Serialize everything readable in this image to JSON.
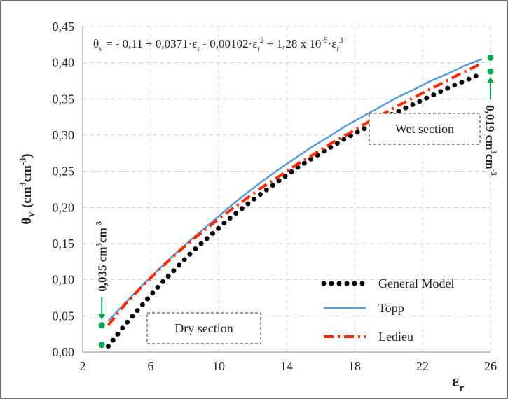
{
  "chart_data": {
    "type": "line",
    "equation": [
      "θ",
      "v",
      " = - 0,11 + 0,0371·ε",
      "r",
      " - 0,00102·ε",
      "r",
      "2",
      " + 1,28 x 10",
      "-5",
      "·ε",
      "r",
      "3"
    ],
    "y_label": [
      "θ",
      "V",
      " (cm",
      "3",
      "cm",
      "-3",
      ")"
    ],
    "x_label": [
      "ε",
      "r"
    ],
    "x": [
      3.5,
      4.5,
      5.5,
      6.5,
      7.5,
      8.5,
      9.5,
      10.5,
      11.5,
      12.5,
      13.5,
      14.5,
      15.5,
      16.5,
      17.5,
      18.5,
      19.5,
      20.5,
      21.5,
      22.5,
      23.5,
      24.5,
      25.5
    ],
    "series": [
      {
        "name": "General Model",
        "color": "#000000",
        "values": [
          0.008,
          0.038,
          0.065,
          0.092,
          0.116,
          0.14,
          0.161,
          0.182,
          0.201,
          0.219,
          0.236,
          0.253,
          0.268,
          0.282,
          0.296,
          0.308,
          0.321,
          0.332,
          0.343,
          0.354,
          0.365,
          0.375,
          0.385
        ]
      },
      {
        "name": "Topp",
        "color": "#5b9bd5",
        "values": [
          0.043,
          0.068,
          0.092,
          0.115,
          0.137,
          0.158,
          0.178,
          0.198,
          0.217,
          0.235,
          0.252,
          0.268,
          0.284,
          0.298,
          0.313,
          0.326,
          0.339,
          0.352,
          0.363,
          0.375,
          0.385,
          0.396,
          0.405
        ]
      },
      {
        "name": "Ledieu",
        "color": "#ff2a00",
        "values": [
          0.037,
          0.066,
          0.091,
          0.114,
          0.136,
          0.156,
          0.175,
          0.193,
          0.21,
          0.227,
          0.242,
          0.258,
          0.272,
          0.287,
          0.3,
          0.314,
          0.327,
          0.34,
          0.352,
          0.364,
          0.376,
          0.388,
          0.399
        ]
      }
    ],
    "xlim": [
      2,
      26
    ],
    "xticks": [
      2,
      6,
      10,
      14,
      18,
      22,
      26
    ],
    "ylim": [
      0,
      0.45
    ],
    "yticks": [
      {
        "value": 0,
        "label": "0,00"
      },
      {
        "value": 0.05,
        "label": "0,05"
      },
      {
        "value": 0.1,
        "label": "0,10"
      },
      {
        "value": 0.15,
        "label": "0,15"
      },
      {
        "value": 0.2,
        "label": "0,20"
      },
      {
        "value": 0.25,
        "label": "0,25"
      },
      {
        "value": 0.3,
        "label": "0,30"
      },
      {
        "value": 0.35,
        "label": "0,35"
      },
      {
        "value": 0.4,
        "label": "0,40"
      },
      {
        "value": 0.45,
        "label": "0,45"
      }
    ],
    "grid": true,
    "legend": "bottom-right",
    "annotations": [
      {
        "text": "Dry section"
      },
      {
        "text": "Wet section"
      }
    ],
    "differences": [
      {
        "label": [
          "0,035 cm",
          "3",
          "cm",
          "-3"
        ],
        "x": 3,
        "y": [
          0.01,
          0.037
        ],
        "color": "#00a651"
      },
      {
        "label": [
          "0,019 cm",
          "3",
          "cm",
          "-3"
        ],
        "x": 26,
        "y": [
          0.388,
          0.407
        ],
        "color": "#00a651"
      }
    ]
  }
}
